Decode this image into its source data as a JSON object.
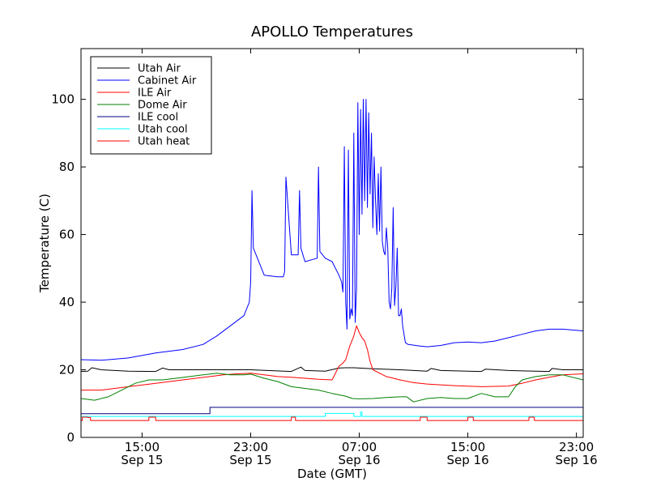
{
  "chart_data": {
    "type": "line",
    "title": "APOLLO Temperatures",
    "xlabel": "Date (GMT)",
    "ylabel": "Temperature (C)",
    "ylim": [
      0,
      115
    ],
    "xlim": [
      10.5,
      47.5
    ],
    "grid": false,
    "legend_position": "top-left",
    "yticks": [
      0,
      20,
      40,
      60,
      80,
      100
    ],
    "xticks": [
      {
        "x": 15,
        "line1": "15:00",
        "line2": "Sep 15"
      },
      {
        "x": 23,
        "line1": "23:00",
        "line2": "Sep 15"
      },
      {
        "x": 31,
        "line1": "07:00",
        "line2": "Sep 16"
      },
      {
        "x": 39,
        "line1": "15:00",
        "line2": "Sep 16"
      },
      {
        "x": 47,
        "line1": "23:00",
        "line2": "Sep 16"
      }
    ],
    "x_units": "hours since Sep 15 00:00 GMT",
    "series": [
      {
        "name": "Utah Air",
        "color": "#000000",
        "x": [
          10.5,
          11.0,
          11.3,
          12.0,
          14.0,
          16.0,
          16.5,
          17.0,
          20.0,
          23.0,
          26.0,
          26.7,
          27.0,
          28.5,
          29.5,
          30.0,
          30.6,
          31.0,
          32.0,
          34.0,
          36.0,
          36.3,
          37.0,
          39.0,
          40.0,
          40.3,
          42.0,
          44.0,
          45.0,
          45.2,
          46.0,
          47.5
        ],
        "values": [
          19.5,
          19.6,
          20.6,
          20.0,
          19.6,
          19.5,
          20.5,
          20.0,
          20.0,
          20.0,
          19.5,
          20.8,
          19.8,
          19.6,
          20.5,
          20.6,
          20.6,
          20.5,
          20.3,
          20.0,
          19.6,
          20.4,
          19.8,
          19.6,
          19.5,
          20.2,
          19.8,
          19.6,
          19.5,
          20.4,
          20.0,
          20.0
        ]
      },
      {
        "name": "Cabinet Air",
        "color": "#0000ff",
        "x": [
          10.5,
          12.0,
          14.0,
          16.0,
          18.0,
          19.5,
          20.5,
          21.5,
          22.5,
          22.9,
          23.0,
          23.1,
          23.2,
          24.0,
          25.0,
          25.4,
          25.5,
          25.6,
          26.0,
          26.5,
          26.6,
          26.7,
          27.0,
          27.9,
          28.0,
          28.1,
          28.5,
          29.0,
          29.5,
          29.7,
          29.8,
          29.9,
          30.0,
          30.1,
          30.2,
          30.3,
          30.4,
          30.5,
          30.6,
          30.7,
          30.8,
          30.9,
          31.0,
          31.1,
          31.2,
          31.3,
          31.4,
          31.5,
          31.6,
          31.7,
          31.8,
          31.9,
          32.0,
          32.1,
          32.2,
          32.3,
          32.4,
          32.5,
          32.6,
          32.7,
          32.8,
          32.9,
          33.0,
          33.1,
          33.2,
          33.3,
          33.4,
          33.5,
          33.6,
          33.7,
          33.8,
          33.9,
          34.0,
          34.1,
          34.2,
          34.4,
          34.6,
          35.0,
          35.5,
          36.0,
          37.0,
          38.0,
          39.0,
          40.0,
          41.0,
          42.0,
          43.0,
          44.0,
          45.0,
          46.0,
          47.5
        ],
        "values": [
          23.0,
          22.8,
          23.5,
          25.0,
          26.0,
          27.5,
          30.0,
          33.0,
          36.0,
          40.0,
          46.0,
          73.0,
          56.0,
          48.0,
          47.5,
          47.5,
          49.0,
          77.0,
          54.0,
          54.0,
          73.0,
          56.0,
          52.0,
          53.0,
          80.0,
          55.0,
          53.0,
          52.0,
          48.0,
          46.0,
          43.0,
          86.0,
          40.0,
          32.0,
          85.0,
          35.0,
          38.0,
          36.0,
          90.0,
          34.0,
          44.0,
          99.0,
          60.0,
          97.0,
          66.0,
          100.0,
          70.0,
          100.0,
          68.0,
          96.0,
          72.0,
          90.0,
          62.0,
          83.0,
          70.0,
          60.0,
          78.0,
          61.0,
          80.0,
          58.0,
          55.0,
          54.0,
          62.0,
          56.0,
          40.0,
          38.0,
          44.0,
          68.0,
          39.0,
          45.0,
          56.0,
          36.0,
          36.0,
          38.0,
          33.0,
          28.0,
          27.5,
          27.3,
          27.0,
          26.8,
          27.2,
          28.0,
          28.2,
          28.0,
          28.5,
          29.5,
          30.5,
          31.5,
          32.0,
          32.0,
          31.5
        ]
      },
      {
        "name": "ILE Air",
        "color": "#ff0000",
        "x": [
          10.5,
          12.0,
          14.0,
          16.0,
          18.0,
          20.0,
          21.0,
          22.0,
          23.0,
          24.0,
          25.0,
          26.0,
          27.0,
          28.0,
          29.0,
          29.5,
          29.8,
          30.0,
          30.3,
          30.6,
          30.8,
          31.0,
          31.2,
          31.4,
          31.6,
          31.8,
          32.0,
          32.5,
          33.0,
          34.0,
          35.0,
          36.0,
          38.0,
          40.0,
          42.0,
          43.0,
          44.0,
          45.0,
          46.0,
          47.5
        ],
        "values": [
          14.0,
          14.0,
          15.0,
          16.0,
          17.0,
          18.0,
          18.5,
          18.8,
          19.0,
          18.5,
          18.0,
          17.8,
          17.5,
          17.2,
          17.0,
          21.0,
          22.0,
          23.0,
          27.0,
          30.0,
          33.0,
          31.0,
          29.5,
          28.5,
          26.0,
          22.5,
          20.0,
          19.0,
          18.0,
          17.0,
          16.2,
          15.8,
          15.3,
          15.0,
          15.2,
          16.0,
          17.0,
          17.8,
          18.5,
          18.8
        ]
      },
      {
        "name": "Dome Air",
        "color": "#008000",
        "x": [
          10.5,
          11.5,
          12.5,
          13.5,
          14.5,
          15.5,
          16.5,
          17.5,
          18.5,
          19.5,
          20.5,
          21.5,
          22.5,
          23.0,
          24.0,
          25.0,
          26.0,
          27.0,
          28.0,
          29.0,
          30.0,
          30.5,
          31.0,
          32.0,
          33.0,
          34.0,
          34.5,
          35.0,
          36.0,
          37.0,
          38.0,
          39.0,
          40.0,
          41.0,
          42.0,
          42.5,
          43.0,
          44.0,
          45.0,
          46.0,
          47.5
        ],
        "values": [
          11.5,
          11.0,
          12.0,
          14.0,
          16.0,
          17.0,
          17.0,
          17.5,
          18.0,
          18.5,
          19.0,
          18.5,
          18.5,
          18.7,
          17.5,
          16.5,
          15.0,
          14.5,
          14.0,
          13.0,
          12.2,
          11.5,
          11.4,
          11.5,
          11.8,
          12.0,
          12.0,
          10.5,
          11.5,
          11.8,
          11.5,
          11.5,
          13.0,
          12.0,
          12.0,
          15.0,
          17.0,
          18.0,
          18.5,
          18.5,
          17.0
        ]
      },
      {
        "name": "ILE cool",
        "color": "#000080",
        "x": [
          10.5,
          20.0,
          20.0,
          47.5
        ],
        "values": [
          7.0,
          7.0,
          8.9,
          8.9
        ]
      },
      {
        "name": "Utah cool",
        "color": "#00ffff",
        "x": [
          10.5,
          28.5,
          28.5,
          30.6,
          30.6,
          31.1,
          31.1,
          31.2,
          31.2,
          31.3,
          31.3,
          47.5
        ],
        "values": [
          6.2,
          6.2,
          7.1,
          7.1,
          6.2,
          6.2,
          7.5,
          7.5,
          6.2,
          6.2,
          6.2,
          6.2
        ]
      },
      {
        "name": "Utah heat",
        "color": "#ff0000",
        "x": [
          10.5,
          10.5,
          10.6,
          10.6,
          11.0,
          11.0,
          11.2,
          11.2,
          15.5,
          15.5,
          16.0,
          16.0,
          26.0,
          26.0,
          26.3,
          26.3,
          35.5,
          35.5,
          36.0,
          36.0,
          39.0,
          39.0,
          39.4,
          39.4,
          43.5,
          43.5,
          43.9,
          43.9,
          47.5
        ],
        "values": [
          3.8,
          5.0,
          5.0,
          6.0,
          6.0,
          5.9,
          5.9,
          5.0,
          5.0,
          6.0,
          6.0,
          5.0,
          5.0,
          6.0,
          6.0,
          5.0,
          5.0,
          6.0,
          6.0,
          5.0,
          5.0,
          6.0,
          6.0,
          5.0,
          5.0,
          6.0,
          6.0,
          5.0,
          5.0
        ]
      }
    ]
  }
}
